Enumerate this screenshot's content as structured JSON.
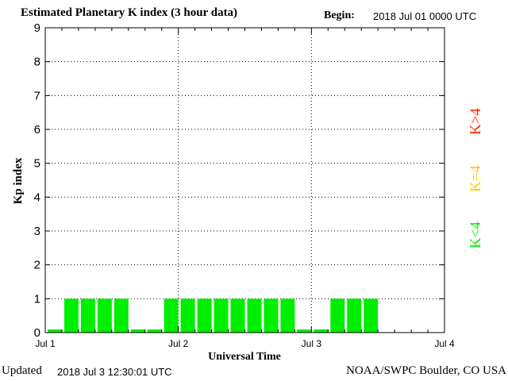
{
  "header": {
    "title": "Estimated Planetary K index (3 hour data)",
    "begin_label": "Begin:",
    "begin_value": "2018 Jul 01 0000 UTC"
  },
  "footer": {
    "updated_label": "Updated",
    "updated_value": "2018 Jul  3 12:30:01 UTC",
    "credit": "NOAA/SWPC Boulder, CO USA"
  },
  "legend": {
    "items": [
      {
        "label": "K>4",
        "color": "#ff2a00"
      },
      {
        "label": "K=4",
        "color": "#ffcc00"
      },
      {
        "label": "K<4",
        "color": "#00ee00"
      }
    ]
  },
  "chart_data": {
    "type": "bar",
    "ylabel": "Kp index",
    "xlabel": "Universal Time",
    "ylim": [
      0,
      9
    ],
    "yticks": [
      0,
      1,
      2,
      3,
      4,
      5,
      6,
      7,
      8,
      9
    ],
    "x_ticks": [
      "Jul 1",
      "Jul 2",
      "Jul 3",
      "Jul 4"
    ],
    "interval_hours": 3,
    "grid": "dotted, major ticks only",
    "bar_color": "#00ee00",
    "values": [
      0,
      1,
      1,
      1,
      1,
      0,
      0,
      1,
      1,
      1,
      1,
      1,
      1,
      1,
      1,
      0,
      0,
      1,
      1,
      1
    ]
  }
}
